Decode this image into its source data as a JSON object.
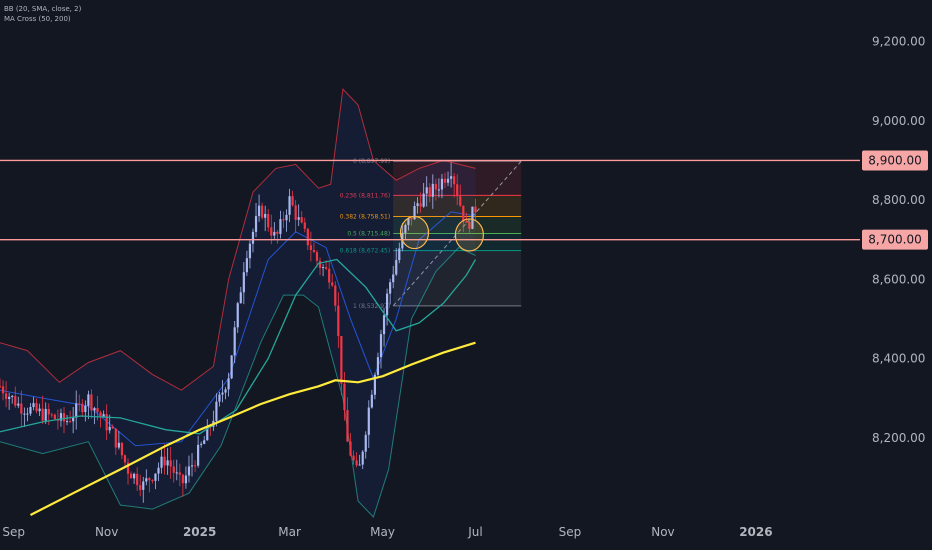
{
  "legend": {
    "bb": "BB (20, SMA, close, 2)",
    "ma": "MA Cross (50, 200)"
  },
  "chart_data": {
    "type": "candlestick",
    "x_ticks": [
      {
        "label": "Sep",
        "date": "2024-09-01",
        "bold": false
      },
      {
        "label": "Nov",
        "date": "2024-11-01",
        "bold": false
      },
      {
        "label": "2025",
        "date": "2025-01-01",
        "bold": true
      },
      {
        "label": "Mar",
        "date": "2025-03-01",
        "bold": false
      },
      {
        "label": "May",
        "date": "2025-05-01",
        "bold": false
      },
      {
        "label": "Jul",
        "date": "2025-07-01",
        "bold": false
      },
      {
        "label": "Sep",
        "date": "2025-09-01",
        "bold": false
      },
      {
        "label": "Nov",
        "date": "2025-11-01",
        "bold": false
      },
      {
        "label": "2026",
        "date": "2026-01-01",
        "bold": true
      }
    ],
    "y_ticks": [
      {
        "label": "9,200.00",
        "value": 9200
      },
      {
        "label": "9,000.00",
        "value": 9000
      },
      {
        "label": "8,800.00",
        "value": 8800
      },
      {
        "label": "8,600.00",
        "value": 8600
      },
      {
        "label": "8,400.00",
        "value": 8400
      },
      {
        "label": "8,200.00",
        "value": 8200
      }
    ],
    "price_range": [
      8005,
      9305
    ],
    "date_range": [
      "2024-08-23",
      "2026-03-09"
    ],
    "horizontal_levels": [
      {
        "label": "8,900.00",
        "value": 8900
      },
      {
        "label": "8,700.00",
        "value": 8700
      }
    ],
    "fib_levels": [
      {
        "label": "0 (8,897.99)",
        "value": 8897.99,
        "color": "#787b86"
      },
      {
        "label": "0.236 (8,811.76)",
        "value": 8811.76,
        "color": "#f23645"
      },
      {
        "label": "0.382 (8,758.51)",
        "value": 8758.51,
        "color": "#ff9800"
      },
      {
        "label": "0.5 (8,715.48)",
        "value": 8715.48,
        "color": "#4caf50"
      },
      {
        "label": "0.618 (8,672.45)",
        "value": 8672.45,
        "color": "#089981"
      },
      {
        "label": "1 (8,532.97)",
        "value": 8532.97,
        "color": "#787b86"
      }
    ],
    "fib_range": {
      "start": "2025-05-08",
      "end": "2025-07-31"
    },
    "highlight_circles": [
      {
        "date": "2025-05-22",
        "value": 8718
      },
      {
        "date": "2025-06-27",
        "value": 8712
      }
    ],
    "ma_200": [
      {
        "d": "2024-09-12",
        "v": 8005
      },
      {
        "d": "2024-10-10",
        "v": 8060
      },
      {
        "d": "2024-11-10",
        "v": 8120
      },
      {
        "d": "2024-12-10",
        "v": 8180
      },
      {
        "d": "2025-01-01",
        "v": 8220
      },
      {
        "d": "2025-01-20",
        "v": 8250
      },
      {
        "d": "2025-02-10",
        "v": 8285
      },
      {
        "d": "2025-03-01",
        "v": 8310
      },
      {
        "d": "2025-03-20",
        "v": 8330
      },
      {
        "d": "2025-03-31",
        "v": 8345
      },
      {
        "d": "2025-04-15",
        "v": 8340
      },
      {
        "d": "2025-05-01",
        "v": 8355
      },
      {
        "d": "2025-05-20",
        "v": 8385
      },
      {
        "d": "2025-06-10",
        "v": 8415
      },
      {
        "d": "2025-07-01",
        "v": 8440
      }
    ],
    "ma_50": [
      {
        "d": "2024-08-23",
        "v": 8215
      },
      {
        "d": "2024-09-20",
        "v": 8240
      },
      {
        "d": "2024-10-15",
        "v": 8255
      },
      {
        "d": "2024-11-10",
        "v": 8250
      },
      {
        "d": "2024-12-10",
        "v": 8220
      },
      {
        "d": "2025-01-01",
        "v": 8210
      },
      {
        "d": "2025-01-25",
        "v": 8270
      },
      {
        "d": "2025-02-15",
        "v": 8400
      },
      {
        "d": "2025-03-05",
        "v": 8560
      },
      {
        "d": "2025-03-20",
        "v": 8640
      },
      {
        "d": "2025-04-01",
        "v": 8650
      },
      {
        "d": "2025-04-20",
        "v": 8580
      },
      {
        "d": "2025-05-10",
        "v": 8470
      },
      {
        "d": "2025-05-25",
        "v": 8490
      },
      {
        "d": "2025-06-10",
        "v": 8540
      },
      {
        "d": "2025-06-25",
        "v": 8610
      },
      {
        "d": "2025-07-01",
        "v": 8650
      }
    ],
    "bb_upper": [
      {
        "d": "2024-08-23",
        "v": 8440
      },
      {
        "d": "2024-09-10",
        "v": 8420
      },
      {
        "d": "2024-10-01",
        "v": 8340
      },
      {
        "d": "2024-10-20",
        "v": 8390
      },
      {
        "d": "2024-11-10",
        "v": 8420
      },
      {
        "d": "2024-12-01",
        "v": 8360
      },
      {
        "d": "2024-12-20",
        "v": 8320
      },
      {
        "d": "2025-01-10",
        "v": 8380
      },
      {
        "d": "2025-01-20",
        "v": 8600
      },
      {
        "d": "2025-02-05",
        "v": 8820
      },
      {
        "d": "2025-02-20",
        "v": 8880
      },
      {
        "d": "2025-03-05",
        "v": 8890
      },
      {
        "d": "2025-03-20",
        "v": 8830
      },
      {
        "d": "2025-03-28",
        "v": 8840
      },
      {
        "d": "2025-04-05",
        "v": 9080
      },
      {
        "d": "2025-04-15",
        "v": 9040
      },
      {
        "d": "2025-04-25",
        "v": 8900
      },
      {
        "d": "2025-05-10",
        "v": 8850
      },
      {
        "d": "2025-05-25",
        "v": 8880
      },
      {
        "d": "2025-06-10",
        "v": 8900
      },
      {
        "d": "2025-07-01",
        "v": 8880
      }
    ],
    "bb_basis": [
      {
        "d": "2024-08-23",
        "v": 8320
      },
      {
        "d": "2024-09-20",
        "v": 8300
      },
      {
        "d": "2024-10-20",
        "v": 8280
      },
      {
        "d": "2024-11-20",
        "v": 8180
      },
      {
        "d": "2024-12-20",
        "v": 8190
      },
      {
        "d": "2025-01-20",
        "v": 8350
      },
      {
        "d": "2025-02-15",
        "v": 8650
      },
      {
        "d": "2025-03-05",
        "v": 8720
      },
      {
        "d": "2025-03-25",
        "v": 8680
      },
      {
        "d": "2025-04-10",
        "v": 8500
      },
      {
        "d": "2025-04-25",
        "v": 8350
      },
      {
        "d": "2025-05-10",
        "v": 8500
      },
      {
        "d": "2025-05-25",
        "v": 8700
      },
      {
        "d": "2025-06-15",
        "v": 8770
      },
      {
        "d": "2025-07-01",
        "v": 8760
      }
    ],
    "bb_lower": [
      {
        "d": "2024-08-23",
        "v": 8190
      },
      {
        "d": "2024-09-20",
        "v": 8160
      },
      {
        "d": "2024-10-20",
        "v": 8190
      },
      {
        "d": "2024-11-10",
        "v": 8030
      },
      {
        "d": "2024-12-01",
        "v": 8020
      },
      {
        "d": "2024-12-25",
        "v": 8060
      },
      {
        "d": "2025-01-15",
        "v": 8180
      },
      {
        "d": "2025-02-10",
        "v": 8440
      },
      {
        "d": "2025-02-25",
        "v": 8560
      },
      {
        "d": "2025-03-10",
        "v": 8560
      },
      {
        "d": "2025-03-20",
        "v": 8530
      },
      {
        "d": "2025-04-05",
        "v": 8300
      },
      {
        "d": "2025-04-15",
        "v": 8040
      },
      {
        "d": "2025-04-25",
        "v": 8000
      },
      {
        "d": "2025-05-05",
        "v": 8120
      },
      {
        "d": "2025-05-20",
        "v": 8500
      },
      {
        "d": "2025-06-05",
        "v": 8620
      },
      {
        "d": "2025-06-20",
        "v": 8680
      },
      {
        "d": "2025-07-01",
        "v": 8660
      }
    ],
    "price_path": [
      {
        "d": "2024-08-23",
        "v": 8330
      },
      {
        "d": "2024-09-05",
        "v": 8280
      },
      {
        "d": "2024-09-20",
        "v": 8260
      },
      {
        "d": "2024-10-05",
        "v": 8240
      },
      {
        "d": "2024-10-20",
        "v": 8300
      },
      {
        "d": "2024-11-05",
        "v": 8210
      },
      {
        "d": "2024-11-15",
        "v": 8120
      },
      {
        "d": "2024-11-25",
        "v": 8080
      },
      {
        "d": "2024-12-10",
        "v": 8150
      },
      {
        "d": "2024-12-20",
        "v": 8080
      },
      {
        "d": "2025-01-05",
        "v": 8200
      },
      {
        "d": "2025-01-20",
        "v": 8360
      },
      {
        "d": "2025-01-31",
        "v": 8660
      },
      {
        "d": "2025-02-10",
        "v": 8780
      },
      {
        "d": "2025-02-20",
        "v": 8700
      },
      {
        "d": "2025-03-01",
        "v": 8800
      },
      {
        "d": "2025-03-10",
        "v": 8720
      },
      {
        "d": "2025-03-20",
        "v": 8640
      },
      {
        "d": "2025-03-30",
        "v": 8600
      },
      {
        "d": "2025-04-07",
        "v": 8200
      },
      {
        "d": "2025-04-15",
        "v": 8100
      },
      {
        "d": "2025-04-25",
        "v": 8350
      },
      {
        "d": "2025-05-05",
        "v": 8580
      },
      {
        "d": "2025-05-15",
        "v": 8720
      },
      {
        "d": "2025-05-25",
        "v": 8800
      },
      {
        "d": "2025-06-05",
        "v": 8830
      },
      {
        "d": "2025-06-15",
        "v": 8880
      },
      {
        "d": "2025-06-25",
        "v": 8730
      },
      {
        "d": "2025-07-01",
        "v": 8780
      }
    ],
    "colors": {
      "background": "#131722",
      "up": "#a9b8f0",
      "down": "#f23645",
      "ma_200": "#ffeb3b",
      "ma_50": "#26a69a",
      "bb_band": "#f23645",
      "bb_basis": "#2962ff",
      "level_line": "#ff9a9a",
      "level_label_bg": "#f7a6a6",
      "circle": "#ffb74d"
    },
    "grid": false,
    "log_scale": false
  }
}
